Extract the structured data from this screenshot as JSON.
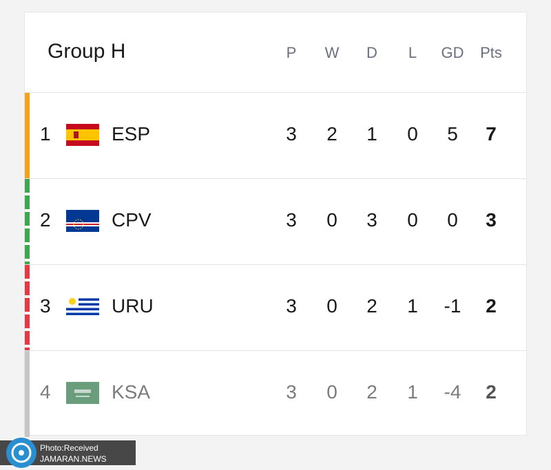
{
  "header": {
    "title": "Group H"
  },
  "table": {
    "columns": [
      "P",
      "W",
      "D",
      "L",
      "GD",
      "Pts"
    ],
    "rows": [
      {
        "rank": "1",
        "team": "ESP",
        "stats": [
          3,
          2,
          1,
          0,
          5,
          7
        ]
      },
      {
        "rank": "2",
        "team": "CPV",
        "stats": [
          3,
          0,
          3,
          0,
          0,
          3
        ]
      },
      {
        "rank": "3",
        "team": "URU",
        "stats": [
          3,
          0,
          2,
          1,
          -1,
          2
        ]
      },
      {
        "rank": "4",
        "team": "KSA",
        "stats": [
          3,
          0,
          2,
          1,
          -4,
          2
        ]
      }
    ]
  },
  "watermark": {
    "line1": "Photo:Received",
    "line2": "JAMARAN.NEWS"
  }
}
